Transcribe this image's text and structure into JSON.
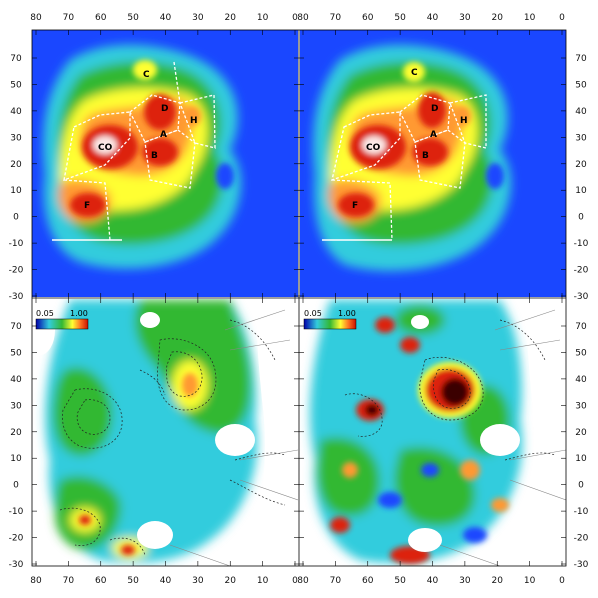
{
  "figure": {
    "x_ticks": [
      "80",
      "70",
      "60",
      "50",
      "40",
      "30",
      "20",
      "10",
      "0"
    ],
    "left_y_ticks": [
      "70",
      "50",
      "40",
      "30",
      "20",
      "10",
      "0",
      "-10",
      "-20",
      "-30"
    ],
    "right_y_ticks": [
      "70",
      "50",
      "40",
      "30",
      "20",
      "10",
      "0",
      "-10",
      "-20",
      "-30"
    ],
    "region_labels": [
      "C",
      "D",
      "H",
      "A",
      "CO",
      "B",
      "F"
    ],
    "colorbar": {
      "min": "0.05",
      "max": "1.00"
    },
    "colors": {
      "background_top": "#1a47ff",
      "low": "#1a47ff",
      "cyan": "#33ccdd",
      "green": "#33b833",
      "yellow": "#ffff33",
      "orange": "#ff9933",
      "red": "#dd2211",
      "dark": "#3a0000"
    }
  }
}
